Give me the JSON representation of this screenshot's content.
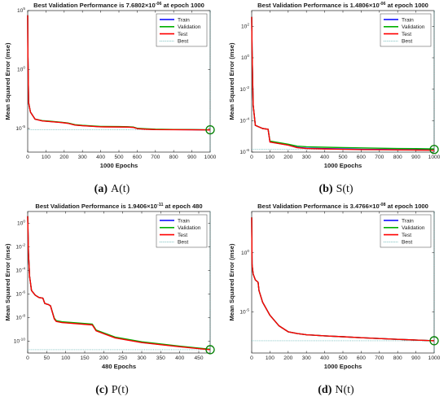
{
  "chart_data": [
    {
      "type": "line",
      "title": "Best Validation Performance is 7.6802×10-06 at epoch 1000",
      "title_main": "Best Validation Performance is 7.6802×10",
      "title_exp": "-06",
      "title_tail": " at epoch 1000",
      "xlabel": "1000 Epochs",
      "ylabel": "Mean Squared Error  (mse)",
      "caption_letter": "(a)",
      "caption_text": "A(t)",
      "xlim": [
        0,
        1000
      ],
      "ylim_log10": [
        -7,
        5
      ],
      "y_scale": "log",
      "xticks": [
        0,
        100,
        200,
        300,
        400,
        500,
        600,
        700,
        800,
        900,
        1000
      ],
      "yticks": [
        {
          "exp": 0,
          "label": "10",
          "sup": "0"
        },
        {
          "exp": 5,
          "label": "10",
          "sup": "5"
        },
        {
          "exp": -5,
          "label": "10",
          "sup": "-5"
        }
      ],
      "legend_position": "top-right",
      "legend": [
        "Train",
        "Validation",
        "Test",
        "Best"
      ],
      "best_point": {
        "x": 1000,
        "y_log10": -5.11
      },
      "series": [
        {
          "name": "Train",
          "color": "#0000ff",
          "x": [
            0,
            1,
            5,
            15,
            40,
            80,
            120,
            180,
            220,
            260,
            300,
            400,
            500,
            550,
            580,
            600,
            650,
            700,
            800,
            900,
            1000
          ],
          "y_log10": [
            4.6,
            1.5,
            -2.8,
            -3.6,
            -4.2,
            -4.35,
            -4.4,
            -4.48,
            -4.55,
            -4.7,
            -4.75,
            -4.85,
            -4.86,
            -4.87,
            -4.9,
            -5.0,
            -5.05,
            -5.08,
            -5.09,
            -5.1,
            -5.12
          ]
        },
        {
          "name": "Validation",
          "color": "#00b000",
          "x": [
            0,
            1,
            5,
            15,
            40,
            80,
            120,
            180,
            220,
            260,
            300,
            400,
            500,
            550,
            580,
            600,
            650,
            700,
            800,
            900,
            1000
          ],
          "y_log10": [
            4.6,
            1.5,
            -2.8,
            -3.6,
            -4.2,
            -4.33,
            -4.38,
            -4.46,
            -4.53,
            -4.68,
            -4.73,
            -4.82,
            -4.83,
            -4.85,
            -4.88,
            -4.98,
            -5.02,
            -5.06,
            -5.08,
            -5.09,
            -5.11
          ]
        },
        {
          "name": "Test",
          "color": "#ff0000",
          "x": [
            0,
            1,
            5,
            15,
            40,
            80,
            120,
            180,
            220,
            260,
            300,
            400,
            500,
            550,
            580,
            600,
            650,
            700,
            800,
            900,
            1000
          ],
          "y_log10": [
            4.6,
            1.5,
            -2.8,
            -3.6,
            -4.2,
            -4.36,
            -4.41,
            -4.49,
            -4.56,
            -4.71,
            -4.76,
            -4.86,
            -4.87,
            -4.88,
            -4.91,
            -5.01,
            -5.06,
            -5.09,
            -5.1,
            -5.11,
            -5.12
          ]
        }
      ]
    },
    {
      "type": "line",
      "title": "Best Validation Performance is 1.4806×10-06 at epoch 1000",
      "title_main": "Best Validation Performance is 1.4806×10",
      "title_exp": "-06",
      "title_tail": " at epoch 1000",
      "xlabel": "1000 Epochs",
      "ylabel": "Mean Squared Error  (mse)",
      "caption_letter": "(b)",
      "caption_text": "S(t)",
      "xlim": [
        0,
        1000
      ],
      "ylim_log10": [
        -6,
        3
      ],
      "y_scale": "log",
      "xticks": [
        0,
        100,
        200,
        300,
        400,
        500,
        600,
        700,
        800,
        900,
        1000
      ],
      "yticks": [
        {
          "exp": -6,
          "label": "10",
          "sup": "-6"
        },
        {
          "exp": -4,
          "label": "10",
          "sup": "-4"
        },
        {
          "exp": -2,
          "label": "10",
          "sup": "-2"
        },
        {
          "exp": 0,
          "label": "10",
          "sup": "0"
        },
        {
          "exp": 2,
          "label": "10",
          "sup": "2"
        }
      ],
      "legend_position": "top-right",
      "legend": [
        "Train",
        "Validation",
        "Test",
        "Best"
      ],
      "best_point": {
        "x": 1000,
        "y_log10": -5.83
      },
      "series": [
        {
          "name": "Train",
          "color": "#0000ff",
          "x": [
            0,
            2,
            8,
            20,
            60,
            90,
            100,
            200,
            250,
            300,
            400,
            500,
            600,
            700,
            800,
            900,
            1000
          ],
          "y_log10": [
            2.6,
            0.5,
            -3.0,
            -4.3,
            -4.5,
            -4.55,
            -5.35,
            -5.55,
            -5.7,
            -5.75,
            -5.78,
            -5.8,
            -5.82,
            -5.83,
            -5.84,
            -5.85,
            -5.86
          ]
        },
        {
          "name": "Validation",
          "color": "#00b000",
          "x": [
            0,
            2,
            8,
            20,
            60,
            90,
            100,
            200,
            250,
            300,
            400,
            500,
            600,
            700,
            800,
            900,
            1000
          ],
          "y_log10": [
            2.6,
            0.5,
            -3.0,
            -4.3,
            -4.5,
            -4.55,
            -5.3,
            -5.5,
            -5.62,
            -5.66,
            -5.69,
            -5.71,
            -5.73,
            -5.75,
            -5.77,
            -5.78,
            -5.8
          ]
        },
        {
          "name": "Test",
          "color": "#ff0000",
          "x": [
            0,
            2,
            8,
            20,
            60,
            90,
            100,
            200,
            250,
            300,
            400,
            500,
            600,
            700,
            800,
            900,
            1000
          ],
          "y_log10": [
            2.6,
            0.5,
            -3.0,
            -4.3,
            -4.5,
            -4.55,
            -5.36,
            -5.56,
            -5.72,
            -5.77,
            -5.8,
            -5.82,
            -5.84,
            -5.85,
            -5.86,
            -5.87,
            -5.88
          ]
        }
      ]
    },
    {
      "type": "line",
      "title": "Best Validation Performance is 1.9406×10-11 at epoch 480",
      "title_main": "Best Validation Performance is 1.9406×10",
      "title_exp": "-11",
      "title_tail": " at epoch 480",
      "xlabel": "480 Epochs",
      "ylabel": "Mean Squared Error  (mse)",
      "caption_letter": "(c)",
      "caption_text": "P(t)",
      "xlim": [
        0,
        480
      ],
      "ylim_log10": [
        -11,
        1
      ],
      "y_scale": "log",
      "xticks": [
        0,
        50,
        100,
        150,
        200,
        250,
        300,
        350,
        400,
        450
      ],
      "yticks": [
        {
          "exp": 0,
          "label": "10",
          "sup": "0"
        },
        {
          "exp": -2,
          "label": "10",
          "sup": "-2"
        },
        {
          "exp": -4,
          "label": "10",
          "sup": "-4"
        },
        {
          "exp": -6,
          "label": "10",
          "sup": "-6"
        },
        {
          "exp": -8,
          "label": "10",
          "sup": "-8"
        },
        {
          "exp": -10,
          "label": "10",
          "sup": "-10"
        }
      ],
      "legend_position": "top-right",
      "legend": [
        "Train",
        "Validation",
        "Test",
        "Best"
      ],
      "best_point": {
        "x": 480,
        "y_log10": -10.72
      },
      "series": [
        {
          "name": "Train",
          "color": "#0000ff",
          "x": [
            0,
            2,
            5,
            10,
            20,
            30,
            40,
            45,
            55,
            60,
            70,
            75,
            90,
            170,
            180,
            230,
            300,
            400,
            480
          ],
          "y_log10": [
            0.6,
            -2.5,
            -4.5,
            -5.7,
            -6.1,
            -6.3,
            -6.35,
            -6.8,
            -6.9,
            -7.0,
            -8.1,
            -8.3,
            -8.4,
            -8.6,
            -9.1,
            -9.7,
            -10.1,
            -10.45,
            -10.7
          ]
        },
        {
          "name": "Validation",
          "color": "#00b000",
          "x": [
            0,
            2,
            5,
            10,
            20,
            30,
            40,
            45,
            55,
            60,
            70,
            75,
            90,
            170,
            180,
            230,
            300,
            400,
            480
          ],
          "y_log10": [
            0.6,
            -2.5,
            -4.5,
            -5.7,
            -6.1,
            -6.3,
            -6.35,
            -6.8,
            -6.9,
            -7.0,
            -8.05,
            -8.25,
            -8.35,
            -8.55,
            -9.05,
            -9.65,
            -10.05,
            -10.42,
            -10.68
          ]
        },
        {
          "name": "Test",
          "color": "#ff0000",
          "x": [
            0,
            2,
            5,
            10,
            20,
            30,
            40,
            45,
            55,
            60,
            70,
            75,
            90,
            170,
            180,
            230,
            300,
            400,
            480
          ],
          "y_log10": [
            0.6,
            -2.5,
            -4.5,
            -5.7,
            -6.1,
            -6.3,
            -6.35,
            -6.8,
            -6.9,
            -7.0,
            -8.12,
            -8.32,
            -8.42,
            -8.62,
            -9.12,
            -9.72,
            -10.12,
            -10.47,
            -10.72
          ]
        }
      ]
    },
    {
      "type": "line",
      "title": "Best Validation Performance is 3.4766×10-08 at epoch 1000",
      "title_main": "Best Validation Performance is 3.4766×10",
      "title_exp": "-08",
      "title_tail": " at epoch 1000",
      "xlabel": "1000 Epochs",
      "ylabel": "Mean Squared Error  (mse)",
      "caption_letter": "(d)",
      "caption_text": "N(t)",
      "xlim": [
        0,
        1000
      ],
      "ylim_log10": [
        -8.5,
        3.5
      ],
      "y_scale": "log",
      "xticks": [
        0,
        100,
        200,
        300,
        400,
        500,
        600,
        700,
        800,
        900,
        1000
      ],
      "yticks": [
        {
          "exp": 0,
          "label": "10",
          "sup": "0"
        },
        {
          "exp": -5,
          "label": "10",
          "sup": "-5"
        }
      ],
      "legend_position": "top-right",
      "legend": [
        "Train",
        "Validation",
        "Test",
        "Best"
      ],
      "best_point": {
        "x": 1000,
        "y_log10": -7.46
      },
      "series": [
        {
          "name": "Train",
          "color": "#0000ff",
          "x": [
            0,
            2,
            8,
            20,
            35,
            40,
            60,
            100,
            150,
            200,
            250,
            300,
            400,
            500,
            600,
            700,
            800,
            900,
            1000
          ],
          "y_log10": [
            3.0,
            -1.0,
            -1.8,
            -2.3,
            -2.5,
            -3.2,
            -4.2,
            -5.3,
            -6.2,
            -6.7,
            -6.85,
            -6.95,
            -7.05,
            -7.12,
            -7.2,
            -7.27,
            -7.34,
            -7.4,
            -7.46
          ]
        },
        {
          "name": "Validation",
          "color": "#00b000",
          "x": [
            0,
            2,
            8,
            20,
            35,
            40,
            60,
            100,
            150,
            200,
            250,
            300,
            400,
            500,
            600,
            700,
            800,
            900,
            1000
          ],
          "y_log10": [
            3.0,
            -1.0,
            -1.8,
            -2.3,
            -2.5,
            -3.2,
            -4.2,
            -5.3,
            -6.2,
            -6.7,
            -6.85,
            -6.95,
            -7.05,
            -7.12,
            -7.2,
            -7.27,
            -7.34,
            -7.4,
            -7.46
          ]
        },
        {
          "name": "Test",
          "color": "#ff0000",
          "x": [
            0,
            2,
            8,
            20,
            35,
            40,
            60,
            100,
            150,
            200,
            250,
            300,
            400,
            500,
            600,
            700,
            800,
            900,
            1000
          ],
          "y_log10": [
            3.0,
            -1.0,
            -1.8,
            -2.3,
            -2.5,
            -3.2,
            -4.2,
            -5.3,
            -6.2,
            -6.7,
            -6.85,
            -6.95,
            -7.05,
            -7.12,
            -7.2,
            -7.27,
            -7.34,
            -7.4,
            -7.46
          ]
        }
      ]
    }
  ]
}
